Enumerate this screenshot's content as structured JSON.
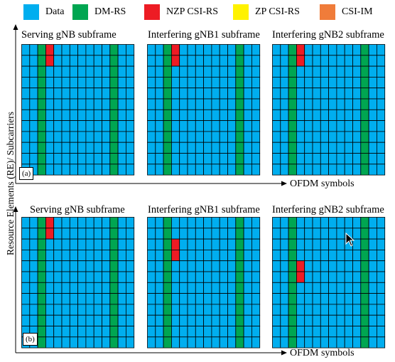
{
  "colors": {
    "data": "#00aeef",
    "dmrs": "#00a651",
    "nzp": "#ed1c24",
    "zp": "#fff200",
    "csiim": "#f07c3a",
    "gridline": "#000000"
  },
  "legend": [
    {
      "key": "data",
      "label": "Data"
    },
    {
      "key": "dmrs",
      "label": "DM-RS"
    },
    {
      "key": "nzp",
      "label": "NZP CSI-RS"
    },
    {
      "key": "zp",
      "label": "ZP CSI-RS"
    },
    {
      "key": "csiim",
      "label": "CSI-IM"
    }
  ],
  "y_axis_label": "Resource Elements (RE)/ Subcarriers",
  "x_axis_label": "OFDM symbols",
  "grid": {
    "rows": 12,
    "cols": 14,
    "dmrs_columns": [
      2,
      11
    ]
  },
  "panels": [
    {
      "label": "(a)",
      "subframes": [
        {
          "title": "Serving gNB subframe",
          "nzp_cells": [
            [
              0,
              3
            ],
            [
              1,
              3
            ]
          ]
        },
        {
          "title": "Interfering gNB1 subframe",
          "nzp_cells": [
            [
              0,
              3
            ],
            [
              1,
              3
            ]
          ]
        },
        {
          "title": "Interfering gNB2 subframe",
          "nzp_cells": [
            [
              0,
              3
            ],
            [
              1,
              3
            ]
          ]
        }
      ]
    },
    {
      "label": "(b)",
      "subframes": [
        {
          "title": "Serving gNB subframe",
          "nzp_cells": [
            [
              0,
              3
            ],
            [
              1,
              3
            ]
          ]
        },
        {
          "title": "Interfering gNB1 subframe",
          "nzp_cells": [
            [
              2,
              3
            ],
            [
              3,
              3
            ]
          ]
        },
        {
          "title": "Interfering gNB2 subframe",
          "nzp_cells": [
            [
              4,
              3
            ],
            [
              5,
              3
            ]
          ]
        }
      ]
    }
  ]
}
